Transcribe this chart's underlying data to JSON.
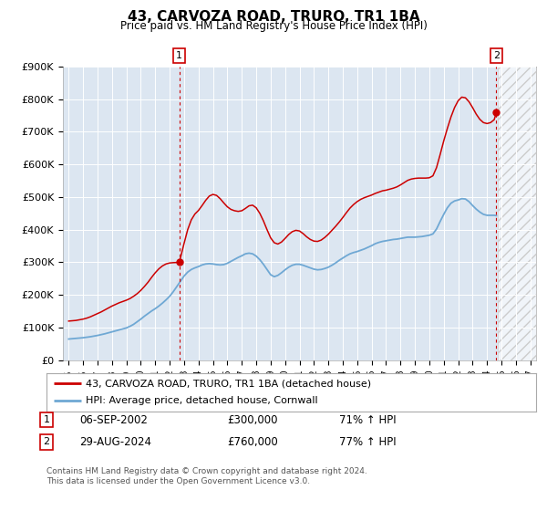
{
  "title": "43, CARVOZA ROAD, TRURO, TR1 1BA",
  "subtitle": "Price paid vs. HM Land Registry's House Price Index (HPI)",
  "legend_line1": "43, CARVOZA ROAD, TRURO, TR1 1BA (detached house)",
  "legend_line2": "HPI: Average price, detached house, Cornwall",
  "annotation1_date": "06-SEP-2002",
  "annotation1_price": "£300,000",
  "annotation1_hpi": "71% ↑ HPI",
  "annotation1_year": 2002.67,
  "annotation1_value": 300000,
  "annotation2_date": "29-AUG-2024",
  "annotation2_price": "£760,000",
  "annotation2_hpi": "77% ↑ HPI",
  "annotation2_year": 2024.65,
  "annotation2_value": 760000,
  "hpi_color": "#6fa8d4",
  "price_color": "#cc0000",
  "plot_bg_color": "#dce6f1",
  "ylim": [
    0,
    900000
  ],
  "yticks": [
    0,
    100000,
    200000,
    300000,
    400000,
    500000,
    600000,
    700000,
    800000,
    900000
  ],
  "xlim_start": 1994.6,
  "xlim_end": 2027.4,
  "future_start": 2024.75,
  "footnote": "Contains HM Land Registry data © Crown copyright and database right 2024.\nThis data is licensed under the Open Government Licence v3.0.",
  "hpi_data": [
    [
      1995.0,
      65000
    ],
    [
      1995.25,
      66000
    ],
    [
      1995.5,
      67000
    ],
    [
      1995.75,
      68000
    ],
    [
      1996.0,
      69000
    ],
    [
      1996.25,
      70500
    ],
    [
      1996.5,
      72000
    ],
    [
      1996.75,
      74000
    ],
    [
      1997.0,
      76000
    ],
    [
      1997.25,
      78500
    ],
    [
      1997.5,
      81000
    ],
    [
      1997.75,
      84000
    ],
    [
      1998.0,
      87000
    ],
    [
      1998.25,
      90000
    ],
    [
      1998.5,
      93000
    ],
    [
      1998.75,
      96000
    ],
    [
      1999.0,
      99000
    ],
    [
      1999.25,
      104000
    ],
    [
      1999.5,
      110000
    ],
    [
      1999.75,
      118000
    ],
    [
      2000.0,
      126000
    ],
    [
      2000.25,
      135000
    ],
    [
      2000.5,
      143000
    ],
    [
      2000.75,
      151000
    ],
    [
      2001.0,
      158000
    ],
    [
      2001.25,
      166000
    ],
    [
      2001.5,
      175000
    ],
    [
      2001.75,
      185000
    ],
    [
      2002.0,
      196000
    ],
    [
      2002.25,
      210000
    ],
    [
      2002.5,
      226000
    ],
    [
      2002.75,
      242000
    ],
    [
      2003.0,
      258000
    ],
    [
      2003.25,
      270000
    ],
    [
      2003.5,
      278000
    ],
    [
      2003.75,
      283000
    ],
    [
      2004.0,
      287000
    ],
    [
      2004.25,
      292000
    ],
    [
      2004.5,
      295000
    ],
    [
      2004.75,
      296000
    ],
    [
      2005.0,
      295000
    ],
    [
      2005.25,
      293000
    ],
    [
      2005.5,
      292000
    ],
    [
      2005.75,
      293000
    ],
    [
      2006.0,
      297000
    ],
    [
      2006.25,
      303000
    ],
    [
      2006.5,
      309000
    ],
    [
      2006.75,
      315000
    ],
    [
      2007.0,
      320000
    ],
    [
      2007.25,
      326000
    ],
    [
      2007.5,
      328000
    ],
    [
      2007.75,
      326000
    ],
    [
      2008.0,
      319000
    ],
    [
      2008.25,
      308000
    ],
    [
      2008.5,
      294000
    ],
    [
      2008.75,
      278000
    ],
    [
      2009.0,
      262000
    ],
    [
      2009.25,
      256000
    ],
    [
      2009.5,
      260000
    ],
    [
      2009.75,
      268000
    ],
    [
      2010.0,
      277000
    ],
    [
      2010.25,
      285000
    ],
    [
      2010.5,
      291000
    ],
    [
      2010.75,
      294000
    ],
    [
      2011.0,
      294000
    ],
    [
      2011.25,
      291000
    ],
    [
      2011.5,
      287000
    ],
    [
      2011.75,
      283000
    ],
    [
      2012.0,
      279000
    ],
    [
      2012.25,
      277000
    ],
    [
      2012.5,
      278000
    ],
    [
      2012.75,
      281000
    ],
    [
      2013.0,
      285000
    ],
    [
      2013.25,
      291000
    ],
    [
      2013.5,
      298000
    ],
    [
      2013.75,
      306000
    ],
    [
      2014.0,
      313000
    ],
    [
      2014.25,
      320000
    ],
    [
      2014.5,
      326000
    ],
    [
      2014.75,
      330000
    ],
    [
      2015.0,
      333000
    ],
    [
      2015.25,
      337000
    ],
    [
      2015.5,
      341000
    ],
    [
      2015.75,
      346000
    ],
    [
      2016.0,
      351000
    ],
    [
      2016.25,
      357000
    ],
    [
      2016.5,
      361000
    ],
    [
      2016.75,
      364000
    ],
    [
      2017.0,
      366000
    ],
    [
      2017.25,
      368000
    ],
    [
      2017.5,
      370000
    ],
    [
      2017.75,
      371000
    ],
    [
      2018.0,
      373000
    ],
    [
      2018.25,
      375000
    ],
    [
      2018.5,
      377000
    ],
    [
      2018.75,
      377000
    ],
    [
      2019.0,
      377000
    ],
    [
      2019.25,
      378000
    ],
    [
      2019.5,
      379000
    ],
    [
      2019.75,
      381000
    ],
    [
      2020.0,
      383000
    ],
    [
      2020.25,
      387000
    ],
    [
      2020.5,
      402000
    ],
    [
      2020.75,
      425000
    ],
    [
      2021.0,
      447000
    ],
    [
      2021.25,
      467000
    ],
    [
      2021.5,
      481000
    ],
    [
      2021.75,
      488000
    ],
    [
      2022.0,
      491000
    ],
    [
      2022.25,
      495000
    ],
    [
      2022.5,
      494000
    ],
    [
      2022.75,
      486000
    ],
    [
      2023.0,
      474000
    ],
    [
      2023.25,
      463000
    ],
    [
      2023.5,
      454000
    ],
    [
      2023.75,
      447000
    ],
    [
      2024.0,
      444000
    ],
    [
      2024.25,
      444000
    ],
    [
      2024.5,
      444000
    ],
    [
      2024.65,
      443000
    ]
  ],
  "price_data": [
    [
      1995.0,
      120000
    ],
    [
      1995.25,
      121000
    ],
    [
      1995.5,
      122000
    ],
    [
      1995.75,
      124000
    ],
    [
      1996.0,
      126000
    ],
    [
      1996.25,
      129000
    ],
    [
      1996.5,
      133000
    ],
    [
      1996.75,
      138000
    ],
    [
      1997.0,
      143000
    ],
    [
      1997.25,
      148000
    ],
    [
      1997.5,
      154000
    ],
    [
      1997.75,
      160000
    ],
    [
      1998.0,
      166000
    ],
    [
      1998.25,
      171000
    ],
    [
      1998.5,
      176000
    ],
    [
      1998.75,
      180000
    ],
    [
      1999.0,
      184000
    ],
    [
      1999.25,
      189000
    ],
    [
      1999.5,
      196000
    ],
    [
      1999.75,
      204000
    ],
    [
      2000.0,
      214000
    ],
    [
      2000.25,
      226000
    ],
    [
      2000.5,
      239000
    ],
    [
      2000.75,
      254000
    ],
    [
      2001.0,
      268000
    ],
    [
      2001.25,
      280000
    ],
    [
      2001.5,
      289000
    ],
    [
      2001.75,
      295000
    ],
    [
      2002.0,
      298000
    ],
    [
      2002.25,
      299000
    ],
    [
      2002.5,
      299500
    ],
    [
      2002.67,
      300000
    ],
    [
      2003.0,
      358000
    ],
    [
      2003.25,
      400000
    ],
    [
      2003.5,
      430000
    ],
    [
      2003.75,
      448000
    ],
    [
      2004.0,
      459000
    ],
    [
      2004.25,
      474000
    ],
    [
      2004.5,
      490000
    ],
    [
      2004.75,
      503000
    ],
    [
      2005.0,
      508000
    ],
    [
      2005.25,
      505000
    ],
    [
      2005.5,
      495000
    ],
    [
      2005.75,
      482000
    ],
    [
      2006.0,
      470000
    ],
    [
      2006.25,
      462000
    ],
    [
      2006.5,
      458000
    ],
    [
      2006.75,
      456000
    ],
    [
      2007.0,
      458000
    ],
    [
      2007.25,
      465000
    ],
    [
      2007.5,
      473000
    ],
    [
      2007.75,
      475000
    ],
    [
      2008.0,
      467000
    ],
    [
      2008.25,
      450000
    ],
    [
      2008.5,
      427000
    ],
    [
      2008.75,
      400000
    ],
    [
      2009.0,
      375000
    ],
    [
      2009.25,
      360000
    ],
    [
      2009.5,
      356000
    ],
    [
      2009.75,
      362000
    ],
    [
      2010.0,
      373000
    ],
    [
      2010.25,
      385000
    ],
    [
      2010.5,
      394000
    ],
    [
      2010.75,
      398000
    ],
    [
      2011.0,
      396000
    ],
    [
      2011.25,
      388000
    ],
    [
      2011.5,
      378000
    ],
    [
      2011.75,
      370000
    ],
    [
      2012.0,
      365000
    ],
    [
      2012.25,
      364000
    ],
    [
      2012.5,
      368000
    ],
    [
      2012.75,
      376000
    ],
    [
      2013.0,
      386000
    ],
    [
      2013.25,
      398000
    ],
    [
      2013.5,
      410000
    ],
    [
      2013.75,
      423000
    ],
    [
      2014.0,
      437000
    ],
    [
      2014.25,
      452000
    ],
    [
      2014.5,
      466000
    ],
    [
      2014.75,
      477000
    ],
    [
      2015.0,
      486000
    ],
    [
      2015.25,
      493000
    ],
    [
      2015.5,
      498000
    ],
    [
      2015.75,
      502000
    ],
    [
      2016.0,
      506000
    ],
    [
      2016.25,
      511000
    ],
    [
      2016.5,
      515000
    ],
    [
      2016.75,
      519000
    ],
    [
      2017.0,
      521000
    ],
    [
      2017.25,
      524000
    ],
    [
      2017.5,
      527000
    ],
    [
      2017.75,
      531000
    ],
    [
      2018.0,
      537000
    ],
    [
      2018.25,
      544000
    ],
    [
      2018.5,
      551000
    ],
    [
      2018.75,
      555000
    ],
    [
      2019.0,
      557000
    ],
    [
      2019.25,
      558000
    ],
    [
      2019.5,
      558000
    ],
    [
      2019.75,
      558000
    ],
    [
      2020.0,
      559000
    ],
    [
      2020.25,
      565000
    ],
    [
      2020.5,
      590000
    ],
    [
      2020.75,
      630000
    ],
    [
      2021.0,
      672000
    ],
    [
      2021.25,
      710000
    ],
    [
      2021.5,
      745000
    ],
    [
      2021.75,
      774000
    ],
    [
      2022.0,
      795000
    ],
    [
      2022.25,
      806000
    ],
    [
      2022.5,
      804000
    ],
    [
      2022.75,
      792000
    ],
    [
      2023.0,
      774000
    ],
    [
      2023.25,
      754000
    ],
    [
      2023.5,
      738000
    ],
    [
      2023.75,
      728000
    ],
    [
      2024.0,
      725000
    ],
    [
      2024.25,
      728000
    ],
    [
      2024.5,
      737000
    ],
    [
      2024.65,
      760000
    ]
  ]
}
